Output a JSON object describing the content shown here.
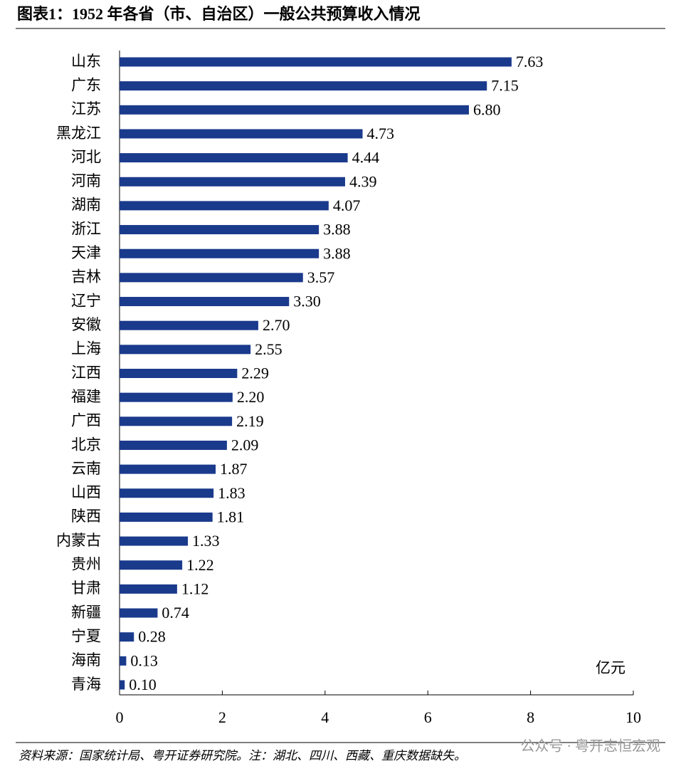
{
  "chart_data": {
    "type": "hbar",
    "title": "图表1：1952 年各省（市、自治区）一般公共预算收入情况",
    "x_label": "亿元",
    "source": "资料来源：国家统计局、粤开证券研究院。注：湖北、四川、西藏、重庆数据缺失。",
    "watermark": "公众号 · 粤开志恒宏观",
    "categories": [
      "山东",
      "广东",
      "江苏",
      "黑龙江",
      "河北",
      "河南",
      "湖南",
      "浙江",
      "天津",
      "吉林",
      "辽宁",
      "安徽",
      "上海",
      "江西",
      "福建",
      "广西",
      "北京",
      "云南",
      "山西",
      "陕西",
      "内蒙古",
      "贵州",
      "甘肃",
      "新疆",
      "宁夏",
      "海南",
      "青海"
    ],
    "values": [
      7.63,
      7.15,
      6.8,
      4.73,
      4.44,
      4.39,
      4.07,
      3.88,
      3.88,
      3.57,
      3.3,
      2.7,
      2.55,
      2.29,
      2.2,
      2.19,
      2.09,
      1.87,
      1.83,
      1.81,
      1.33,
      1.22,
      1.12,
      0.74,
      0.28,
      0.13,
      0.1
    ],
    "value_labels": [
      "7.63",
      "7.15",
      "6.80",
      "4.73",
      "4.44",
      "4.39",
      "4.07",
      "3.88",
      "3.88",
      "3.57",
      "3.30",
      "2.70",
      "2.55",
      "2.29",
      "2.20",
      "2.19",
      "2.09",
      "1.87",
      "1.83",
      "1.81",
      "1.33",
      "1.22",
      "1.12",
      "0.74",
      "0.28",
      "0.13",
      "0.10"
    ],
    "color": "#1a3a8c",
    "xlim": [
      0,
      10
    ],
    "xticks": [
      0,
      2,
      4,
      6,
      8,
      10
    ],
    "grid": false
  }
}
